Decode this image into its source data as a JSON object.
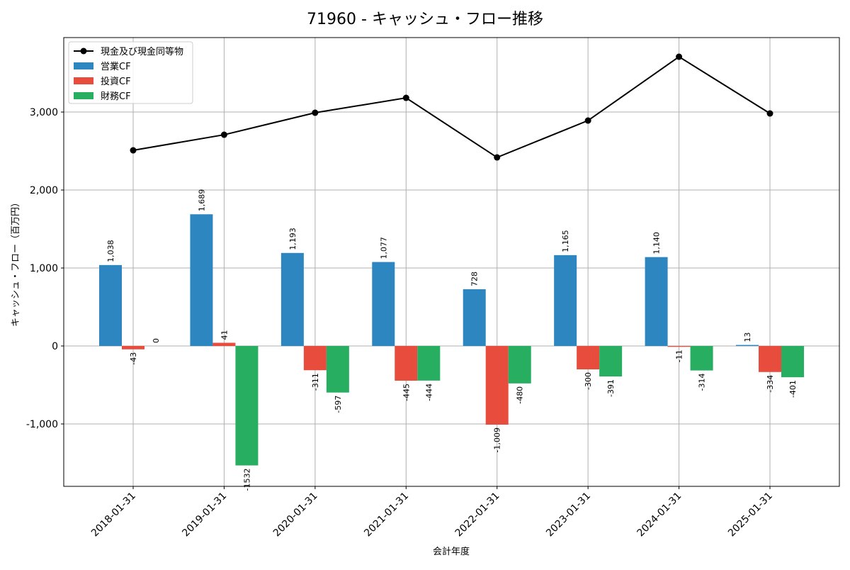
{
  "chart_data": {
    "type": "bar",
    "title": "71960 - キャッシュ・フロー推移",
    "xlabel": "会計年度",
    "ylabel": "キャッシュ・フロー（百万円）",
    "ylim": [
      -1800,
      3955
    ],
    "yticks": [
      -1000,
      0,
      1000,
      2000,
      3000
    ],
    "ytick_labels": [
      "-1,000",
      "0",
      "1,000",
      "2,000",
      "3,000"
    ],
    "grid": true,
    "legend_position": "top-left",
    "categories": [
      "2018-01-31",
      "2019-01-31",
      "2020-01-31",
      "2021-01-31",
      "2022-01-31",
      "2023-01-31",
      "2024-01-31",
      "2025-01-31"
    ],
    "series": [
      {
        "name": "営業CF",
        "type": "bar",
        "color": "#2e86c1",
        "values": [
          1038,
          1689,
          1193,
          1077,
          728,
          1165,
          1140,
          13
        ],
        "labels": [
          "1,038",
          "1,689",
          "1,193",
          "1,077",
          "728",
          "1,165",
          "1,140",
          "13"
        ]
      },
      {
        "name": "投資CF",
        "type": "bar",
        "color": "#e74c3c",
        "values": [
          -43,
          41,
          -311,
          -445,
          -1009,
          -300,
          -11,
          -334
        ],
        "labels": [
          "-43",
          "41",
          "-311",
          "-445",
          "-1,009",
          "-300",
          "-11",
          "-334"
        ]
      },
      {
        "name": "財務CF",
        "type": "bar",
        "color": "#27ae60",
        "values": [
          0,
          -1532,
          -597,
          -444,
          -480,
          -391,
          -314,
          -401
        ],
        "labels": [
          "0",
          "-1532",
          "-597",
          "-444",
          "-480",
          "-391",
          "-314",
          "-401"
        ]
      },
      {
        "name": "現金及び現金同等物",
        "type": "line",
        "color": "#000000",
        "values": [
          2509,
          2709,
          2991,
          3182,
          2418,
          2891,
          3709,
          2982
        ]
      }
    ]
  }
}
